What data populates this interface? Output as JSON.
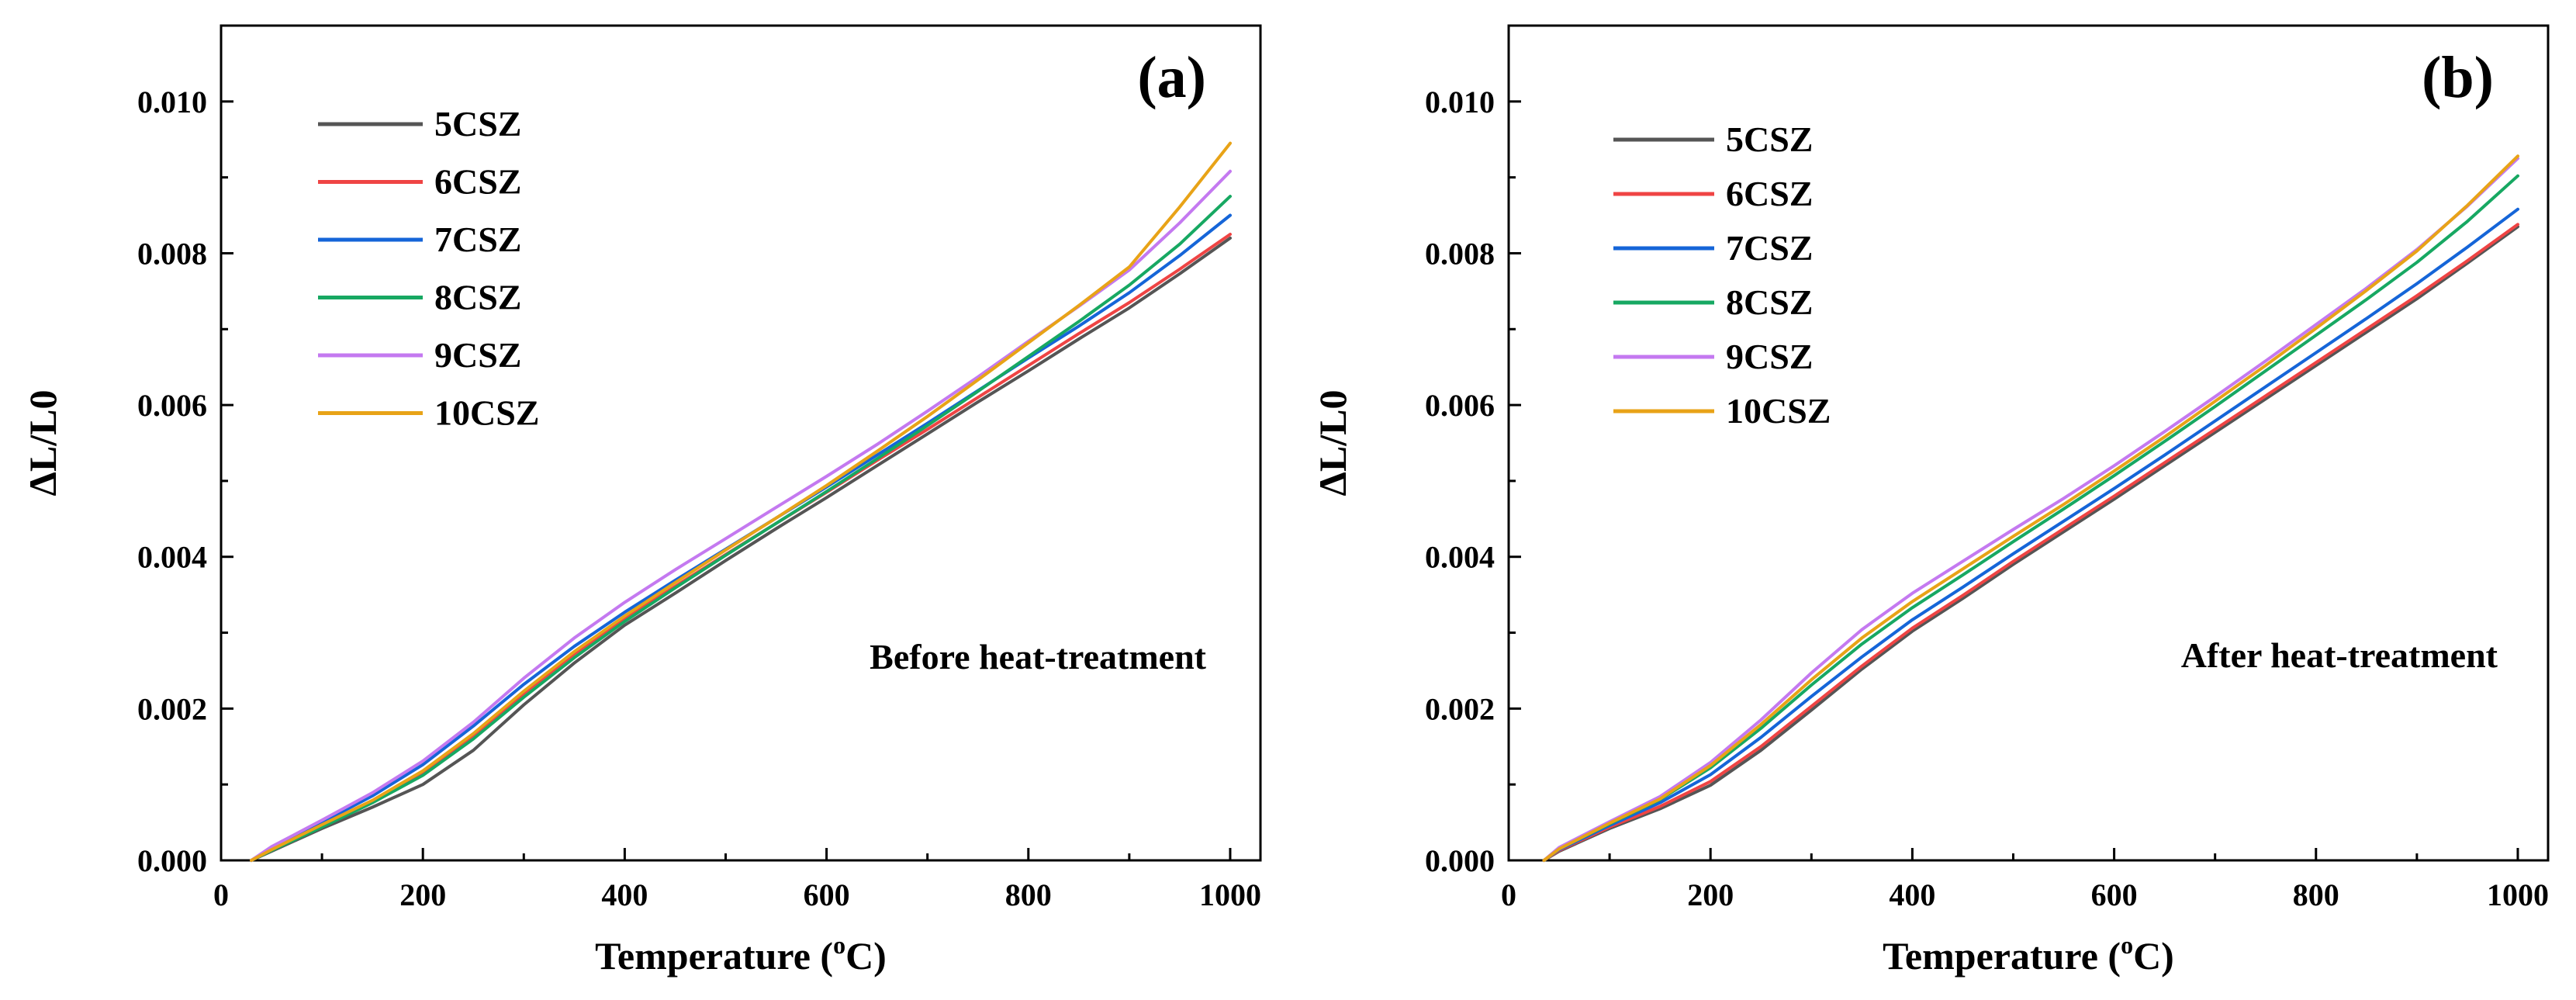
{
  "chart_data": [
    {
      "type": "line",
      "panel_label": "(a)",
      "annotation": "Before heat-treatment",
      "xlabel": "Temperature (°C)",
      "xlabel_parts": {
        "main": "Temperature (",
        "sup": "o",
        "tail": "C)"
      },
      "ylabel": "ΔL/L0",
      "xlim": [
        0,
        1030
      ],
      "ylim": [
        0,
        0.011
      ],
      "xticks": [
        0,
        200,
        400,
        600,
        800,
        1000
      ],
      "yticks": [
        0.0,
        0.002,
        0.004,
        0.006,
        0.008,
        0.01
      ],
      "ytick_labels": [
        "0.000",
        "0.002",
        "0.004",
        "0.006",
        "0.008",
        "0.010"
      ],
      "legend_position": "top-left",
      "grid": false,
      "x": [
        30,
        50,
        100,
        150,
        200,
        250,
        300,
        350,
        400,
        450,
        500,
        550,
        600,
        650,
        700,
        750,
        800,
        850,
        900,
        950,
        1000
      ],
      "series": [
        {
          "name": "5CSZ",
          "color": "#555555",
          "values": [
            0.0,
            0.00012,
            0.00042,
            0.0007,
            0.001,
            0.00145,
            0.00205,
            0.0026,
            0.0031,
            0.00352,
            0.00395,
            0.00437,
            0.00478,
            0.0052,
            0.00562,
            0.00604,
            0.00645,
            0.00687,
            0.00728,
            0.00773,
            0.0082
          ]
        },
        {
          "name": "6CSZ",
          "color": "#ef4444",
          "values": [
            0.0,
            0.00014,
            0.00046,
            0.00078,
            0.00116,
            0.00165,
            0.0022,
            0.00272,
            0.00318,
            0.00361,
            0.00403,
            0.00444,
            0.00485,
            0.00527,
            0.00568,
            0.0061,
            0.00652,
            0.00694,
            0.00735,
            0.00779,
            0.00825
          ]
        },
        {
          "name": "7CSZ",
          "color": "#1565d8",
          "values": [
            0.0,
            0.00017,
            0.0005,
            0.00085,
            0.00126,
            0.00177,
            0.00232,
            0.00282,
            0.00327,
            0.00369,
            0.0041,
            0.00451,
            0.00492,
            0.00534,
            0.00576,
            0.00619,
            0.00662,
            0.00704,
            0.00748,
            0.00797,
            0.0085
          ]
        },
        {
          "name": "8CSZ",
          "color": "#17a862",
          "values": [
            0.0,
            0.00013,
            0.00044,
            0.00076,
            0.00112,
            0.0016,
            0.00215,
            0.00267,
            0.00315,
            0.00359,
            0.00402,
            0.00444,
            0.00486,
            0.00529,
            0.00573,
            0.00618,
            0.00664,
            0.0071,
            0.00758,
            0.00812,
            0.00875
          ]
        },
        {
          "name": "9CSZ",
          "color": "#c479f0",
          "values": [
            0.0,
            0.00018,
            0.00053,
            0.00089,
            0.00131,
            0.00182,
            0.0024,
            0.00293,
            0.0034,
            0.00383,
            0.00424,
            0.00465,
            0.00506,
            0.00548,
            0.00592,
            0.00637,
            0.00684,
            0.0073,
            0.00778,
            0.0084,
            0.00908
          ]
        },
        {
          "name": "10CSZ",
          "color": "#e8a317",
          "values": [
            0.0,
            0.00014,
            0.00047,
            0.00079,
            0.00118,
            0.00167,
            0.00223,
            0.00275,
            0.00322,
            0.00366,
            0.00409,
            0.00451,
            0.00494,
            0.00539,
            0.00585,
            0.00633,
            0.00682,
            0.00731,
            0.00782,
            0.00861,
            0.00945
          ]
        }
      ]
    },
    {
      "type": "line",
      "panel_label": "(b)",
      "annotation": "After heat-treatment",
      "xlabel": "Temperature (°C)",
      "xlabel_parts": {
        "main": "Temperature (",
        "sup": "o",
        "tail": "C)"
      },
      "ylabel": "ΔL/L0",
      "xlim": [
        0,
        1030
      ],
      "ylim": [
        0,
        0.011
      ],
      "xticks": [
        0,
        200,
        400,
        600,
        800,
        1000
      ],
      "yticks": [
        0.0,
        0.002,
        0.004,
        0.006,
        0.008,
        0.01
      ],
      "ytick_labels": [
        "0.000",
        "0.002",
        "0.004",
        "0.006",
        "0.008",
        "0.010"
      ],
      "legend_position": "top-left",
      "grid": false,
      "x": [
        35,
        50,
        100,
        150,
        200,
        250,
        300,
        350,
        400,
        450,
        500,
        550,
        600,
        650,
        700,
        750,
        800,
        850,
        900,
        950,
        1000
      ],
      "series": [
        {
          "name": "5CSZ",
          "color": "#555555",
          "values": [
            0.0,
            0.00012,
            0.00042,
            0.00068,
            0.00099,
            0.00145,
            0.00198,
            0.00252,
            0.00302,
            0.00345,
            0.0039,
            0.00433,
            0.00476,
            0.0052,
            0.00564,
            0.00608,
            0.00652,
            0.00696,
            0.0074,
            0.00787,
            0.00835
          ]
        },
        {
          "name": "6CSZ",
          "color": "#ef4444",
          "values": [
            0.0,
            0.00013,
            0.00044,
            0.00071,
            0.00104,
            0.0015,
            0.00203,
            0.00256,
            0.00306,
            0.00349,
            0.00394,
            0.00437,
            0.0048,
            0.00524,
            0.00568,
            0.00612,
            0.00656,
            0.007,
            0.00744,
            0.0079,
            0.00838
          ]
        },
        {
          "name": "7CSZ",
          "color": "#1565d8",
          "values": [
            0.0,
            0.00014,
            0.00046,
            0.00076,
            0.00113,
            0.00162,
            0.00216,
            0.00268,
            0.00317,
            0.0036,
            0.00404,
            0.00447,
            0.0049,
            0.00534,
            0.00579,
            0.00624,
            0.00669,
            0.00714,
            0.0076,
            0.00808,
            0.00858
          ]
        },
        {
          "name": "8CSZ",
          "color": "#17a862",
          "values": [
            0.0,
            0.00015,
            0.00048,
            0.0008,
            0.00122,
            0.00174,
            0.00231,
            0.00285,
            0.00333,
            0.00376,
            0.0042,
            0.00463,
            0.00507,
            0.00552,
            0.00598,
            0.00645,
            0.00692,
            0.00739,
            0.00788,
            0.00842,
            0.00902
          ]
        },
        {
          "name": "9CSZ",
          "color": "#c479f0",
          "values": [
            0.0,
            0.00017,
            0.00051,
            0.00084,
            0.00129,
            0.00185,
            0.00247,
            0.00304,
            0.00352,
            0.00394,
            0.00436,
            0.00477,
            0.0052,
            0.00565,
            0.00611,
            0.00658,
            0.00706,
            0.00754,
            0.00805,
            0.00862,
            0.00925
          ]
        },
        {
          "name": "10CSZ",
          "color": "#e8a317",
          "values": [
            0.0,
            0.00015,
            0.00049,
            0.00081,
            0.00125,
            0.00179,
            0.00238,
            0.00293,
            0.00341,
            0.00384,
            0.00427,
            0.00469,
            0.00513,
            0.00558,
            0.00605,
            0.00652,
            0.00701,
            0.00751,
            0.00803,
            0.00863,
            0.00928
          ]
        }
      ]
    }
  ]
}
